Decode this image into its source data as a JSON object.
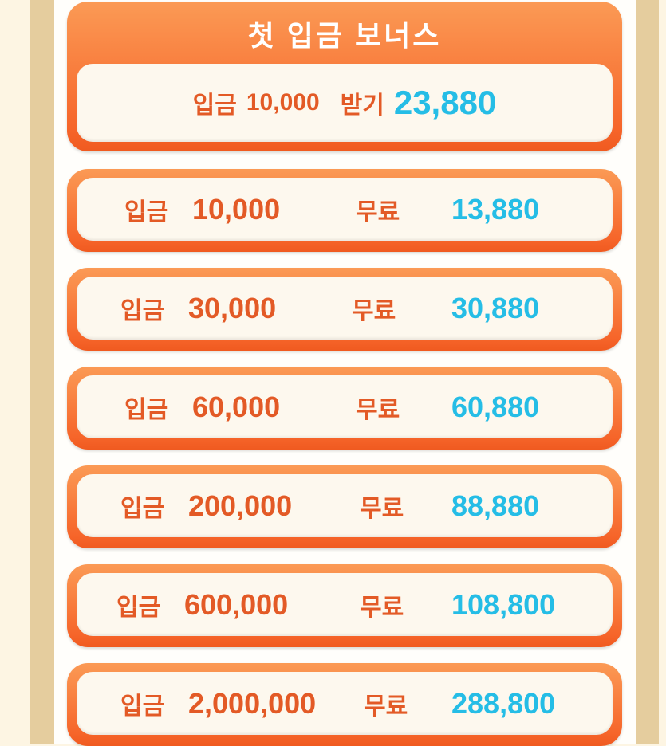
{
  "header": {
    "title": "첫 입금 보너스",
    "deposit_label": "입금",
    "deposit_amount": "10,000",
    "receive_label": "받기",
    "receive_amount": "23,880"
  },
  "rows": [
    {
      "deposit_label": "입금",
      "amount": "10,000",
      "free_label": "무료",
      "bonus": "13,880"
    },
    {
      "deposit_label": "입금",
      "amount": "30,000",
      "free_label": "무료",
      "bonus": "30,880"
    },
    {
      "deposit_label": "입금",
      "amount": "60,000",
      "free_label": "무료",
      "bonus": "60,880"
    },
    {
      "deposit_label": "입금",
      "amount": "200,000",
      "free_label": "무료",
      "bonus": "88,880"
    },
    {
      "deposit_label": "입금",
      "amount": "600,000",
      "free_label": "무료",
      "bonus": "108,800"
    },
    {
      "deposit_label": "입금",
      "amount": "2,000,000",
      "free_label": "무료",
      "bonus": "288,800"
    }
  ],
  "colors": {
    "accent": "#f6652a",
    "bonus": "#25bde6",
    "label": "#e35a26"
  }
}
